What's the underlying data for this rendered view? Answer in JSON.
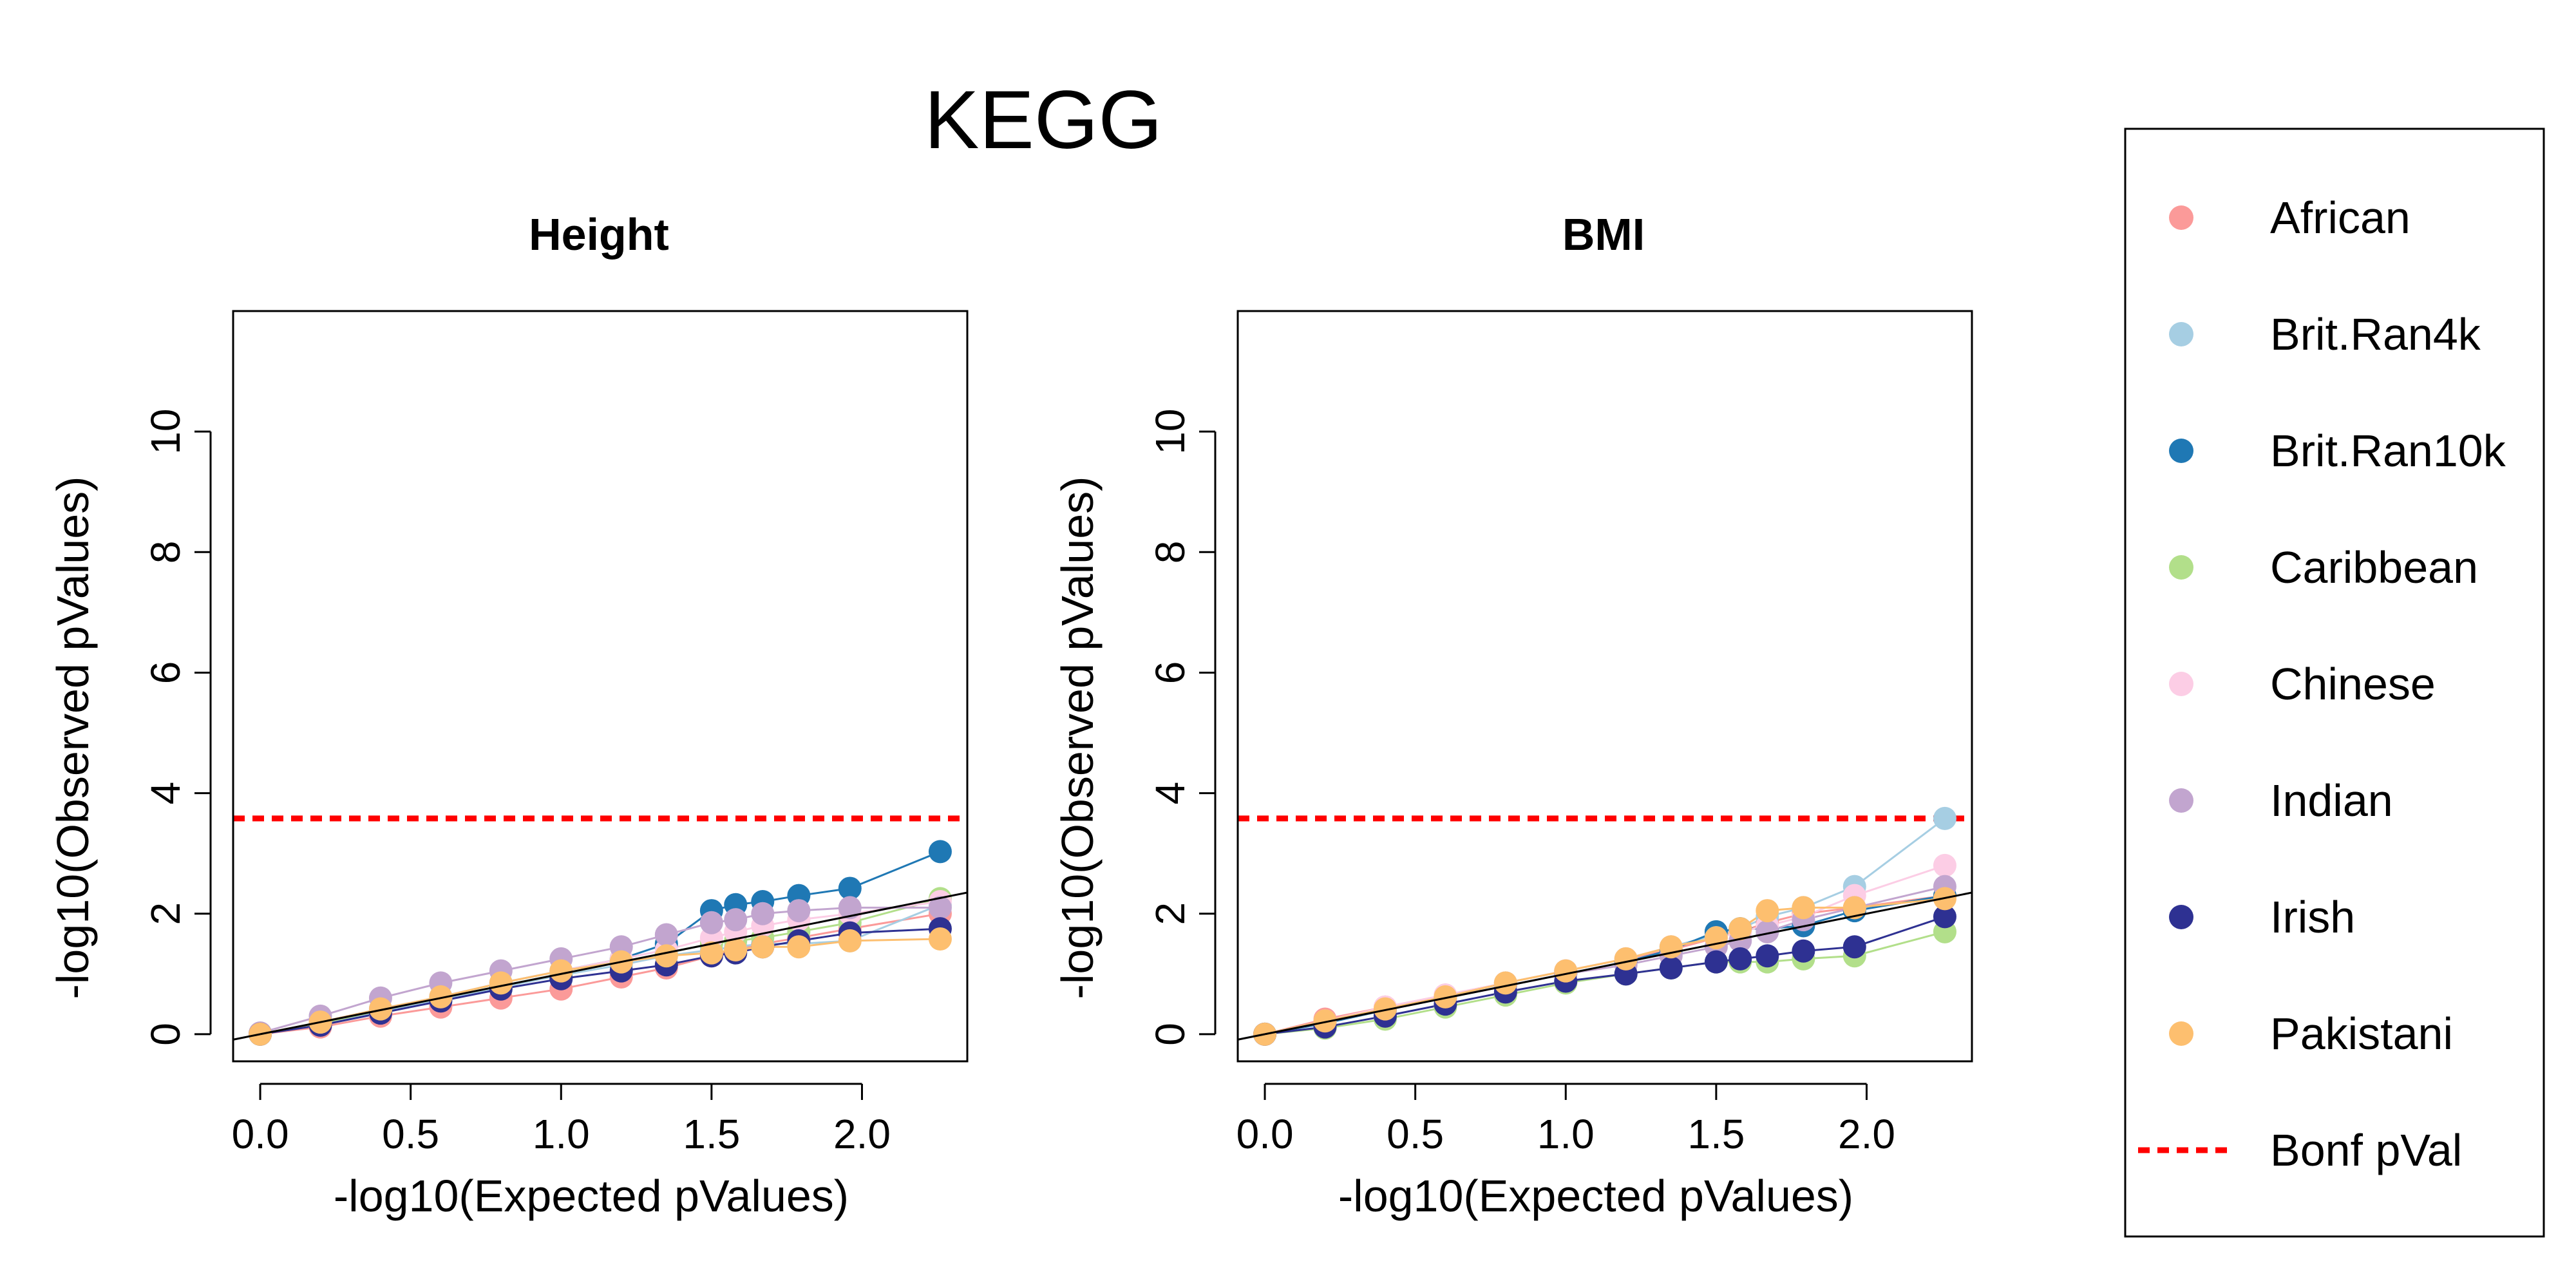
{
  "figure": {
    "title": "KEGG"
  },
  "colors": {
    "African": "#FB9A99",
    "Brit.Ran4k": "#A6CEE3",
    "Brit.Ran10k": "#1F78B4",
    "Caribbean": "#B2DF8A",
    "Chinese": "#FCCDE5",
    "Indian": "#C2A5CF",
    "Irish": "#2E3192",
    "Pakistani": "#FDBF6F",
    "bonf": "#FF0000"
  },
  "legend": {
    "items": [
      {
        "label": "African",
        "color": "#FB9A99",
        "kind": "point"
      },
      {
        "label": "Brit.Ran4k",
        "color": "#A6CEE3",
        "kind": "point"
      },
      {
        "label": "Brit.Ran10k",
        "color": "#1F78B4",
        "kind": "point"
      },
      {
        "label": "Caribbean",
        "color": "#B2DF8A",
        "kind": "point"
      },
      {
        "label": "Chinese",
        "color": "#FCCDE5",
        "kind": "point"
      },
      {
        "label": "Indian",
        "color": "#C2A5CF",
        "kind": "point"
      },
      {
        "label": "Irish",
        "color": "#2E3192",
        "kind": "point"
      },
      {
        "label": "Pakistani",
        "color": "#FDBF6F",
        "kind": "point"
      },
      {
        "label": "Bonf pVal",
        "color": "#FF0000",
        "kind": "dashed-line"
      }
    ]
  },
  "chart_data": [
    {
      "type": "scatter",
      "title": "Height",
      "xlabel": "-log10(Expected pValues)",
      "ylabel": "-log10(Observed pValues)",
      "xlim": [
        -0.09,
        2.35
      ],
      "ylim": [
        -0.45,
        12.0
      ],
      "xticks": [
        0.0,
        0.5,
        1.0,
        1.5,
        2.0
      ],
      "xtick_labels": [
        "0.0",
        "0.5",
        "1.0",
        "1.5",
        "2.0"
      ],
      "yticks": [
        0,
        2,
        4,
        6,
        8,
        10
      ],
      "ytick_labels": [
        "0",
        "2",
        "4",
        "6",
        "8",
        "10"
      ],
      "reference_line": {
        "from": [
          0,
          0
        ],
        "to": [
          2.35,
          2.35
        ]
      },
      "bonferroni": 3.58,
      "x": [
        0.0,
        0.2,
        0.4,
        0.6,
        0.8,
        1.0,
        1.2,
        1.35,
        1.5,
        1.58,
        1.67,
        1.79,
        1.96,
        2.26
      ],
      "series": [
        {
          "name": "African",
          "color": "#FB9A99",
          "y": [
            0.0,
            0.12,
            0.3,
            0.45,
            0.6,
            0.75,
            0.95,
            1.1,
            1.3,
            1.4,
            1.5,
            1.6,
            1.75,
            2.0
          ]
        },
        {
          "name": "Brit.Ran4k",
          "color": "#A6CEE3",
          "y": [
            0.0,
            0.18,
            0.38,
            0.58,
            0.78,
            0.98,
            1.15,
            1.3,
            1.4,
            1.45,
            1.5,
            1.5,
            1.55,
            2.15
          ]
        },
        {
          "name": "Brit.Ran10k",
          "color": "#1F78B4",
          "y": [
            0.0,
            0.2,
            0.42,
            0.62,
            0.85,
            1.05,
            1.25,
            1.5,
            2.05,
            2.15,
            2.2,
            2.3,
            2.42,
            3.03
          ]
        },
        {
          "name": "Caribbean",
          "color": "#B2DF8A",
          "y": [
            0.0,
            0.18,
            0.4,
            0.6,
            0.8,
            1.0,
            1.2,
            1.35,
            1.5,
            1.55,
            1.6,
            1.7,
            1.85,
            2.25
          ]
        },
        {
          "name": "Chinese",
          "color": "#FCCDE5",
          "y": [
            0.0,
            0.2,
            0.42,
            0.62,
            0.85,
            1.05,
            1.25,
            1.4,
            1.6,
            1.7,
            1.8,
            1.9,
            2.0,
            2.2
          ]
        },
        {
          "name": "Indian",
          "color": "#C2A5CF",
          "y": [
            0.02,
            0.3,
            0.6,
            0.85,
            1.05,
            1.25,
            1.45,
            1.65,
            1.85,
            1.9,
            2.0,
            2.05,
            2.1,
            2.1
          ]
        },
        {
          "name": "Irish",
          "color": "#2E3192",
          "y": [
            0.0,
            0.15,
            0.35,
            0.55,
            0.75,
            0.92,
            1.05,
            1.15,
            1.3,
            1.35,
            1.45,
            1.55,
            1.68,
            1.75
          ]
        },
        {
          "name": "Pakistani",
          "color": "#FDBF6F",
          "y": [
            0.0,
            0.2,
            0.42,
            0.62,
            0.85,
            1.05,
            1.2,
            1.3,
            1.35,
            1.4,
            1.45,
            1.45,
            1.55,
            1.58
          ]
        }
      ]
    },
    {
      "type": "scatter",
      "title": "BMI",
      "xlabel": "-log10(Expected pValues)",
      "ylabel": "-log10(Observed pValues)",
      "xlim": [
        -0.09,
        2.35
      ],
      "ylim": [
        -0.45,
        12.0
      ],
      "xticks": [
        0.0,
        0.5,
        1.0,
        1.5,
        2.0
      ],
      "xtick_labels": [
        "0.0",
        "0.5",
        "1.0",
        "1.5",
        "2.0"
      ],
      "yticks": [
        0,
        2,
        4,
        6,
        8,
        10
      ],
      "ytick_labels": [
        "0",
        "2",
        "4",
        "6",
        "8",
        "10"
      ],
      "reference_line": {
        "from": [
          0,
          0
        ],
        "to": [
          2.35,
          2.35
        ]
      },
      "bonferroni": 3.58,
      "x": [
        0.0,
        0.2,
        0.4,
        0.6,
        0.8,
        1.0,
        1.2,
        1.35,
        1.5,
        1.58,
        1.67,
        1.79,
        1.96,
        2.26
      ],
      "series": [
        {
          "name": "African",
          "color": "#FB9A99",
          "y": [
            0.0,
            0.25,
            0.45,
            0.65,
            0.85,
            1.05,
            1.25,
            1.4,
            1.6,
            1.7,
            1.85,
            2.0,
            2.1,
            2.3
          ]
        },
        {
          "name": "Brit.Ran4k",
          "color": "#A6CEE3",
          "y": [
            0.0,
            0.2,
            0.42,
            0.62,
            0.85,
            1.05,
            1.25,
            1.45,
            1.65,
            1.75,
            1.95,
            2.1,
            2.45,
            3.58
          ]
        },
        {
          "name": "Brit.Ran10k",
          "color": "#1F78B4",
          "y": [
            0.0,
            0.18,
            0.4,
            0.6,
            0.8,
            1.0,
            1.2,
            1.4,
            1.7,
            1.75,
            1.75,
            1.8,
            2.05,
            2.3
          ]
        },
        {
          "name": "Caribbean",
          "color": "#B2DF8A",
          "y": [
            0.0,
            0.1,
            0.25,
            0.45,
            0.65,
            0.85,
            1.0,
            1.1,
            1.2,
            1.2,
            1.2,
            1.25,
            1.3,
            1.7
          ]
        },
        {
          "name": "Chinese",
          "color": "#FCCDE5",
          "y": [
            0.0,
            0.22,
            0.45,
            0.65,
            0.85,
            1.05,
            1.25,
            1.45,
            1.6,
            1.7,
            1.8,
            1.95,
            2.3,
            2.8
          ]
        },
        {
          "name": "Indian",
          "color": "#C2A5CF",
          "y": [
            0.0,
            0.2,
            0.4,
            0.6,
            0.8,
            1.0,
            1.15,
            1.3,
            1.45,
            1.55,
            1.7,
            1.9,
            2.1,
            2.45
          ]
        },
        {
          "name": "Irish",
          "color": "#2E3192",
          "y": [
            0.0,
            0.12,
            0.3,
            0.5,
            0.7,
            0.88,
            1.0,
            1.1,
            1.2,
            1.25,
            1.3,
            1.38,
            1.45,
            1.95
          ]
        },
        {
          "name": "Pakistani",
          "color": "#FDBF6F",
          "y": [
            0.0,
            0.22,
            0.42,
            0.62,
            0.85,
            1.05,
            1.25,
            1.45,
            1.6,
            1.75,
            2.05,
            2.1,
            2.1,
            2.25
          ]
        }
      ]
    }
  ]
}
